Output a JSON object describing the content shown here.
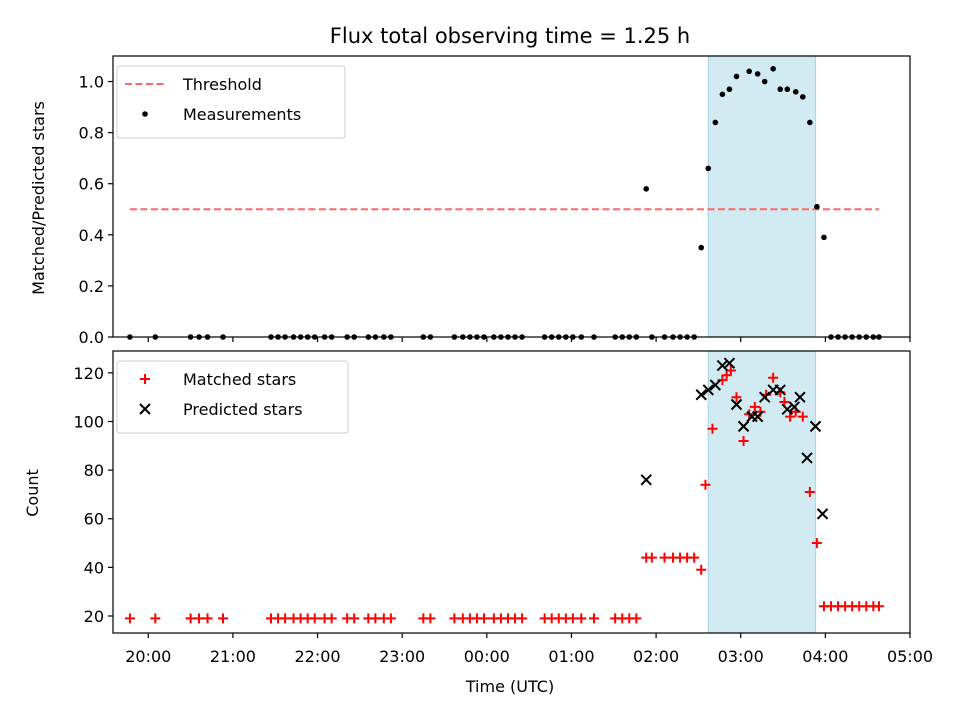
{
  "chart_data": [
    {
      "type": "scatter",
      "title": "Flux total observing time = 1.25 h",
      "xlabel": "",
      "ylabel": "Matched/Predicted stars",
      "ylim": [
        0,
        1.1
      ],
      "yticks": [
        "0.0",
        "0.2",
        "0.4",
        "0.6",
        "0.8",
        "1.0"
      ],
      "xlim": [
        "19:35",
        "05:00"
      ],
      "legend_position": "top-left",
      "highlight": {
        "x_start": "02:37",
        "x_end": "03:53",
        "color": "#add8e6"
      },
      "threshold": {
        "name": "Threshold",
        "value": 0.5,
        "x_start": "19:47",
        "x_end": "04:38",
        "color": "#ff6666"
      },
      "series": [
        {
          "name": "Measurements",
          "color": "#000000",
          "marker": "dot",
          "points": [
            [
              "19:47",
              0
            ],
            [
              "20:05",
              0
            ],
            [
              "20:30",
              0
            ],
            [
              "20:36",
              0
            ],
            [
              "20:42",
              0
            ],
            [
              "20:53",
              0
            ],
            [
              "21:27",
              0
            ],
            [
              "21:32",
              0
            ],
            [
              "21:37",
              0
            ],
            [
              "21:43",
              0
            ],
            [
              "21:48",
              0
            ],
            [
              "21:53",
              0
            ],
            [
              "21:58",
              0
            ],
            [
              "22:05",
              0
            ],
            [
              "22:10",
              0
            ],
            [
              "22:21",
              0
            ],
            [
              "22:26",
              0
            ],
            [
              "22:36",
              0
            ],
            [
              "22:41",
              0
            ],
            [
              "22:47",
              0
            ],
            [
              "22:52",
              0
            ],
            [
              "23:15",
              0
            ],
            [
              "23:20",
              0
            ],
            [
              "23:37",
              0
            ],
            [
              "23:43",
              0
            ],
            [
              "23:48",
              0
            ],
            [
              "23:53",
              0
            ],
            [
              "23:58",
              0
            ],
            [
              "00:05",
              0
            ],
            [
              "00:10",
              0
            ],
            [
              "00:15",
              0
            ],
            [
              "00:20",
              0
            ],
            [
              "00:25",
              0
            ],
            [
              "00:41",
              0
            ],
            [
              "00:46",
              0
            ],
            [
              "00:51",
              0
            ],
            [
              "00:56",
              0
            ],
            [
              "01:01",
              0
            ],
            [
              "01:07",
              0
            ],
            [
              "01:16",
              0
            ],
            [
              "01:31",
              0
            ],
            [
              "01:36",
              0
            ],
            [
              "01:41",
              0
            ],
            [
              "01:46",
              0
            ],
            [
              "01:53",
              0.58
            ],
            [
              "01:57",
              0
            ],
            [
              "02:06",
              0
            ],
            [
              "02:12",
              0
            ],
            [
              "02:17",
              0
            ],
            [
              "02:22",
              0
            ],
            [
              "02:27",
              0
            ],
            [
              "02:32",
              0.35
            ],
            [
              "02:37",
              0.66
            ],
            [
              "02:42",
              0.84
            ],
            [
              "02:47",
              0.95
            ],
            [
              "02:52",
              0.97
            ],
            [
              "02:57",
              1.02
            ],
            [
              "03:06",
              1.04
            ],
            [
              "03:12",
              1.03
            ],
            [
              "03:17",
              1.0
            ],
            [
              "03:23",
              1.05
            ],
            [
              "03:28",
              0.97
            ],
            [
              "03:33",
              0.97
            ],
            [
              "03:39",
              0.96
            ],
            [
              "03:44",
              0.94
            ],
            [
              "03:49",
              0.84
            ],
            [
              "03:54",
              0.51
            ],
            [
              "03:59",
              0.39
            ],
            [
              "04:04",
              0
            ],
            [
              "04:09",
              0
            ],
            [
              "04:14",
              0
            ],
            [
              "04:19",
              0
            ],
            [
              "04:24",
              0
            ],
            [
              "04:29",
              0
            ],
            [
              "04:34",
              0
            ],
            [
              "04:38",
              0
            ]
          ]
        }
      ]
    },
    {
      "type": "scatter",
      "title": "",
      "xlabel": "Time (UTC)",
      "ylabel": "Count",
      "ylim": [
        13,
        129
      ],
      "yticks": [
        "20",
        "40",
        "60",
        "80",
        "100",
        "120"
      ],
      "xlim": [
        "19:35",
        "05:00"
      ],
      "xticks": [
        "20:00",
        "21:00",
        "22:00",
        "23:00",
        "00:00",
        "01:00",
        "02:00",
        "03:00",
        "04:00",
        "05:00"
      ],
      "legend_position": "top-left",
      "highlight": {
        "x_start": "02:37",
        "x_end": "03:53",
        "color": "#add8e6"
      },
      "series": [
        {
          "name": "Matched stars",
          "color": "#ff0000",
          "marker": "plus",
          "points": [
            [
              "19:47",
              19
            ],
            [
              "20:05",
              19
            ],
            [
              "20:30",
              19
            ],
            [
              "20:36",
              19
            ],
            [
              "20:42",
              19
            ],
            [
              "20:53",
              19
            ],
            [
              "21:27",
              19
            ],
            [
              "21:32",
              19
            ],
            [
              "21:37",
              19
            ],
            [
              "21:43",
              19
            ],
            [
              "21:48",
              19
            ],
            [
              "21:53",
              19
            ],
            [
              "21:58",
              19
            ],
            [
              "22:05",
              19
            ],
            [
              "22:10",
              19
            ],
            [
              "22:21",
              19
            ],
            [
              "22:26",
              19
            ],
            [
              "22:36",
              19
            ],
            [
              "22:41",
              19
            ],
            [
              "22:47",
              19
            ],
            [
              "22:52",
              19
            ],
            [
              "23:15",
              19
            ],
            [
              "23:20",
              19
            ],
            [
              "23:37",
              19
            ],
            [
              "23:43",
              19
            ],
            [
              "23:48",
              19
            ],
            [
              "23:53",
              19
            ],
            [
              "23:58",
              19
            ],
            [
              "00:05",
              19
            ],
            [
              "00:10",
              19
            ],
            [
              "00:15",
              19
            ],
            [
              "00:20",
              19
            ],
            [
              "00:25",
              19
            ],
            [
              "00:41",
              19
            ],
            [
              "00:46",
              19
            ],
            [
              "00:51",
              19
            ],
            [
              "00:56",
              19
            ],
            [
              "01:01",
              19
            ],
            [
              "01:07",
              19
            ],
            [
              "01:16",
              19
            ],
            [
              "01:31",
              19
            ],
            [
              "01:36",
              19
            ],
            [
              "01:41",
              19
            ],
            [
              "01:46",
              19
            ],
            [
              "01:53",
              44
            ],
            [
              "01:57",
              44
            ],
            [
              "02:06",
              44
            ],
            [
              "02:12",
              44
            ],
            [
              "02:17",
              44
            ],
            [
              "02:22",
              44
            ],
            [
              "02:27",
              44
            ],
            [
              "02:32",
              39
            ],
            [
              "02:35",
              74
            ],
            [
              "02:40",
              97
            ],
            [
              "02:47",
              117
            ],
            [
              "02:50",
              119
            ],
            [
              "02:53",
              121
            ],
            [
              "02:57",
              110
            ],
            [
              "03:02",
              92
            ],
            [
              "03:06",
              103
            ],
            [
              "03:10",
              106
            ],
            [
              "03:14",
              104
            ],
            [
              "03:18",
              111
            ],
            [
              "03:23",
              118
            ],
            [
              "03:28",
              112
            ],
            [
              "03:31",
              108
            ],
            [
              "03:35",
              102
            ],
            [
              "03:39",
              104
            ],
            [
              "03:44",
              102
            ],
            [
              "03:49",
              71
            ],
            [
              "03:54",
              50
            ],
            [
              "03:59",
              24
            ],
            [
              "04:04",
              24
            ],
            [
              "04:09",
              24
            ],
            [
              "04:14",
              24
            ],
            [
              "04:19",
              24
            ],
            [
              "04:24",
              24
            ],
            [
              "04:29",
              24
            ],
            [
              "04:34",
              24
            ],
            [
              "04:38",
              24
            ]
          ]
        },
        {
          "name": "Predicted stars",
          "color": "#000000",
          "marker": "x",
          "points": [
            [
              "01:53",
              76
            ],
            [
              "02:32",
              111
            ],
            [
              "02:37",
              113
            ],
            [
              "02:42",
              115
            ],
            [
              "02:47",
              123
            ],
            [
              "02:52",
              124
            ],
            [
              "02:57",
              107
            ],
            [
              "03:02",
              98
            ],
            [
              "03:08",
              102
            ],
            [
              "03:12",
              102
            ],
            [
              "03:17",
              110
            ],
            [
              "03:23",
              113
            ],
            [
              "03:28",
              113
            ],
            [
              "03:33",
              105
            ],
            [
              "03:38",
              106
            ],
            [
              "03:42",
              110
            ],
            [
              "03:47",
              85
            ],
            [
              "03:53",
              98
            ],
            [
              "03:58",
              62
            ]
          ]
        }
      ]
    }
  ]
}
